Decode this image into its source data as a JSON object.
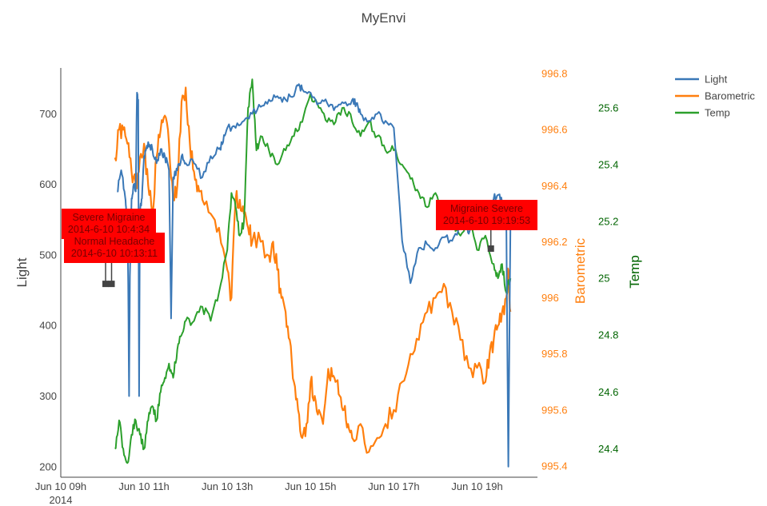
{
  "chart_data": {
    "type": "line",
    "title": "MyEnvi",
    "x_axis": {
      "ticks": [
        {
          "label": "Jun 10 09h",
          "sublabel": "2014",
          "hour": 9
        },
        {
          "label": "Jun 10 11h",
          "hour": 11
        },
        {
          "label": "Jun 10 13h",
          "hour": 13
        },
        {
          "label": "Jun 10 15h",
          "hour": 15
        },
        {
          "label": "Jun 10 17h",
          "hour": 17
        },
        {
          "label": "Jun 10 19h",
          "hour": 19
        }
      ],
      "range_hours": [
        9.0,
        20.45
      ]
    },
    "y_axes": {
      "light": {
        "title": "Light",
        "range": [
          185,
          765
        ],
        "ticks": [
          200,
          300,
          400,
          500,
          600,
          700
        ],
        "color": "#444444"
      },
      "barometric": {
        "title": "Barometric",
        "range": [
          995.36,
          996.82
        ],
        "ticks": [
          "995.4",
          "995.6",
          "995.8",
          "996",
          "996.2",
          "996.4",
          "996.6",
          "996.8"
        ],
        "color": "#ff7f0e"
      },
      "temp": {
        "title": "Temp",
        "range": [
          24.3,
          25.74
        ],
        "ticks": [
          "24.4",
          "24.6",
          "24.8",
          "25",
          "25.2",
          "25.4",
          "25.6"
        ],
        "color": "#006400"
      }
    },
    "legend": {
      "position": "top-right",
      "items": [
        "Light",
        "Barometric",
        "Temp"
      ]
    },
    "series": [
      {
        "name": "Light",
        "color": "#3a78b7",
        "axis": "light",
        "points": [
          [
            10.35,
            590
          ],
          [
            10.45,
            620
          ],
          [
            10.55,
            580
          ],
          [
            10.58,
            550
          ],
          [
            10.6,
            540
          ],
          [
            10.62,
            460
          ],
          [
            10.64,
            300
          ],
          [
            10.66,
            470
          ],
          [
            10.7,
            580
          ],
          [
            10.75,
            600
          ],
          [
            10.8,
            590
          ],
          [
            10.83,
            730
          ],
          [
            10.86,
            720
          ],
          [
            10.88,
            300
          ],
          [
            10.9,
            560
          ],
          [
            10.95,
            580
          ],
          [
            11.0,
            640
          ],
          [
            11.05,
            650
          ],
          [
            11.1,
            660
          ],
          [
            11.2,
            650
          ],
          [
            11.3,
            630
          ],
          [
            11.4,
            650
          ],
          [
            11.5,
            640
          ],
          [
            11.6,
            620
          ],
          [
            11.65,
            410
          ],
          [
            11.7,
            610
          ],
          [
            11.8,
            620
          ],
          [
            11.9,
            640
          ],
          [
            12.0,
            630
          ],
          [
            12.2,
            630
          ],
          [
            12.4,
            610
          ],
          [
            12.6,
            640
          ],
          [
            12.8,
            650
          ],
          [
            12.9,
            660
          ],
          [
            13.0,
            680
          ],
          [
            13.2,
            680
          ],
          [
            13.4,
            690
          ],
          [
            13.6,
            700
          ],
          [
            13.8,
            710
          ],
          [
            14.0,
            720
          ],
          [
            14.2,
            725
          ],
          [
            14.4,
            720
          ],
          [
            14.6,
            725
          ],
          [
            14.7,
            740
          ],
          [
            14.8,
            735
          ],
          [
            15.0,
            730
          ],
          [
            15.2,
            715
          ],
          [
            15.4,
            715
          ],
          [
            15.6,
            710
          ],
          [
            15.8,
            715
          ],
          [
            16.0,
            720
          ],
          [
            16.1,
            715
          ],
          [
            16.2,
            700
          ],
          [
            16.4,
            690
          ],
          [
            16.6,
            700
          ],
          [
            16.8,
            690
          ],
          [
            17.0,
            680
          ],
          [
            17.2,
            520
          ],
          [
            17.4,
            460
          ],
          [
            17.6,
            510
          ],
          [
            17.8,
            515
          ],
          [
            18.0,
            510
          ],
          [
            18.2,
            525
          ],
          [
            18.4,
            520
          ],
          [
            18.6,
            540
          ],
          [
            18.7,
            550
          ],
          [
            18.8,
            530
          ],
          [
            19.0,
            550
          ],
          [
            19.2,
            560
          ],
          [
            19.4,
            580
          ],
          [
            19.5,
            585
          ],
          [
            19.6,
            575
          ],
          [
            19.7,
            560
          ],
          [
            19.75,
            200
          ],
          [
            19.8,
            540
          ]
        ]
      },
      {
        "name": "Barometric",
        "color": "#ff7f0e",
        "axis": "barometric",
        "points": [
          [
            10.3,
            996.5
          ],
          [
            10.4,
            996.6
          ],
          [
            10.5,
            996.6
          ],
          [
            10.6,
            996.55
          ],
          [
            10.7,
            996.45
          ],
          [
            10.8,
            996.4
          ],
          [
            10.9,
            996.5
          ],
          [
            11.0,
            996.55
          ],
          [
            11.1,
            996.4
          ],
          [
            11.2,
            996.3
          ],
          [
            11.3,
            996.5
          ],
          [
            11.4,
            996.6
          ],
          [
            11.5,
            996.65
          ],
          [
            11.6,
            996.55
          ],
          [
            11.7,
            996.35
          ],
          [
            11.8,
            996.4
          ],
          [
            11.9,
            996.7
          ],
          [
            12.0,
            996.75
          ],
          [
            12.1,
            996.55
          ],
          [
            12.2,
            996.45
          ],
          [
            12.3,
            996.4
          ],
          [
            12.4,
            996.35
          ],
          [
            12.6,
            996.3
          ],
          [
            12.8,
            996.25
          ],
          [
            13.0,
            996.1
          ],
          [
            13.1,
            996.0
          ],
          [
            13.2,
            996.35
          ],
          [
            13.3,
            996.35
          ],
          [
            13.4,
            996.3
          ],
          [
            13.5,
            996.25
          ],
          [
            13.6,
            996.2
          ],
          [
            13.8,
            996.2
          ],
          [
            14.0,
            996.15
          ],
          [
            14.1,
            996.2
          ],
          [
            14.2,
            996.1
          ],
          [
            14.3,
            996.0
          ],
          [
            14.4,
            995.95
          ],
          [
            14.5,
            995.85
          ],
          [
            14.6,
            995.7
          ],
          [
            14.7,
            995.6
          ],
          [
            14.8,
            995.5
          ],
          [
            14.9,
            995.55
          ],
          [
            15.0,
            995.7
          ],
          [
            15.1,
            995.65
          ],
          [
            15.2,
            995.6
          ],
          [
            15.3,
            995.55
          ],
          [
            15.4,
            995.7
          ],
          [
            15.5,
            995.75
          ],
          [
            15.6,
            995.7
          ],
          [
            15.7,
            995.65
          ],
          [
            15.8,
            995.6
          ],
          [
            15.9,
            995.55
          ],
          [
            16.0,
            995.5
          ],
          [
            16.2,
            995.55
          ],
          [
            16.4,
            995.45
          ],
          [
            16.6,
            995.5
          ],
          [
            16.8,
            995.55
          ],
          [
            17.0,
            995.6
          ],
          [
            17.2,
            995.7
          ],
          [
            17.4,
            995.8
          ],
          [
            17.6,
            995.85
          ],
          [
            17.8,
            995.95
          ],
          [
            18.0,
            996.0
          ],
          [
            18.2,
            996.05
          ],
          [
            18.4,
            995.95
          ],
          [
            18.6,
            995.85
          ],
          [
            18.8,
            995.75
          ],
          [
            19.0,
            995.75
          ],
          [
            19.2,
            995.7
          ],
          [
            19.3,
            995.8
          ],
          [
            19.4,
            995.85
          ],
          [
            19.5,
            995.9
          ],
          [
            19.6,
            995.95
          ],
          [
            19.7,
            996.0
          ],
          [
            19.75,
            996.1
          ],
          [
            19.8,
            995.95
          ]
        ]
      },
      {
        "name": "Temp",
        "color": "#2ca02c",
        "axis": "temp",
        "points": [
          [
            10.3,
            24.4
          ],
          [
            10.4,
            24.5
          ],
          [
            10.5,
            24.4
          ],
          [
            10.6,
            24.35
          ],
          [
            10.7,
            24.45
          ],
          [
            10.8,
            24.5
          ],
          [
            10.9,
            24.45
          ],
          [
            11.0,
            24.4
          ],
          [
            11.1,
            24.5
          ],
          [
            11.2,
            24.55
          ],
          [
            11.3,
            24.5
          ],
          [
            11.4,
            24.6
          ],
          [
            11.5,
            24.65
          ],
          [
            11.6,
            24.7
          ],
          [
            11.7,
            24.65
          ],
          [
            11.8,
            24.75
          ],
          [
            11.9,
            24.8
          ],
          [
            12.0,
            24.85
          ],
          [
            12.2,
            24.85
          ],
          [
            12.4,
            24.9
          ],
          [
            12.6,
            24.85
          ],
          [
            12.8,
            24.95
          ],
          [
            13.0,
            25.1
          ],
          [
            13.1,
            25.3
          ],
          [
            13.2,
            25.25
          ],
          [
            13.3,
            25.15
          ],
          [
            13.4,
            25.2
          ],
          [
            13.5,
            25.6
          ],
          [
            13.6,
            25.7
          ],
          [
            13.7,
            25.45
          ],
          [
            13.8,
            25.5
          ],
          [
            14.0,
            25.45
          ],
          [
            14.2,
            25.4
          ],
          [
            14.4,
            25.45
          ],
          [
            14.6,
            25.5
          ],
          [
            14.8,
            25.55
          ],
          [
            15.0,
            25.65
          ],
          [
            15.2,
            25.6
          ],
          [
            15.4,
            25.55
          ],
          [
            15.6,
            25.55
          ],
          [
            15.8,
            25.6
          ],
          [
            16.0,
            25.55
          ],
          [
            16.2,
            25.5
          ],
          [
            16.4,
            25.55
          ],
          [
            16.6,
            25.5
          ],
          [
            16.8,
            25.45
          ],
          [
            17.0,
            25.45
          ],
          [
            17.2,
            25.4
          ],
          [
            17.4,
            25.35
          ],
          [
            17.6,
            25.3
          ],
          [
            17.8,
            25.25
          ],
          [
            18.0,
            25.3
          ],
          [
            18.2,
            25.25
          ],
          [
            18.4,
            25.2
          ],
          [
            18.6,
            25.15
          ],
          [
            18.8,
            25.2
          ],
          [
            19.0,
            25.1
          ],
          [
            19.2,
            25.15
          ],
          [
            19.4,
            25.05
          ],
          [
            19.5,
            25.0
          ],
          [
            19.6,
            25.05
          ],
          [
            19.7,
            24.95
          ],
          [
            19.8,
            25.0
          ]
        ]
      }
    ],
    "annotations": [
      {
        "lines": [
          "Severe Migraine",
          "2014-6-10 10:4:34"
        ],
        "hour": 10.076,
        "light": 459
      },
      {
        "lines": [
          "Normal Headache",
          "2014-6-10 10:13:11"
        ],
        "hour": 10.22,
        "light": 459
      },
      {
        "lines": [
          "Migraine Severe",
          "2014-6-10 19:19:53"
        ],
        "hour": 19.331,
        "light": 509
      }
    ]
  }
}
